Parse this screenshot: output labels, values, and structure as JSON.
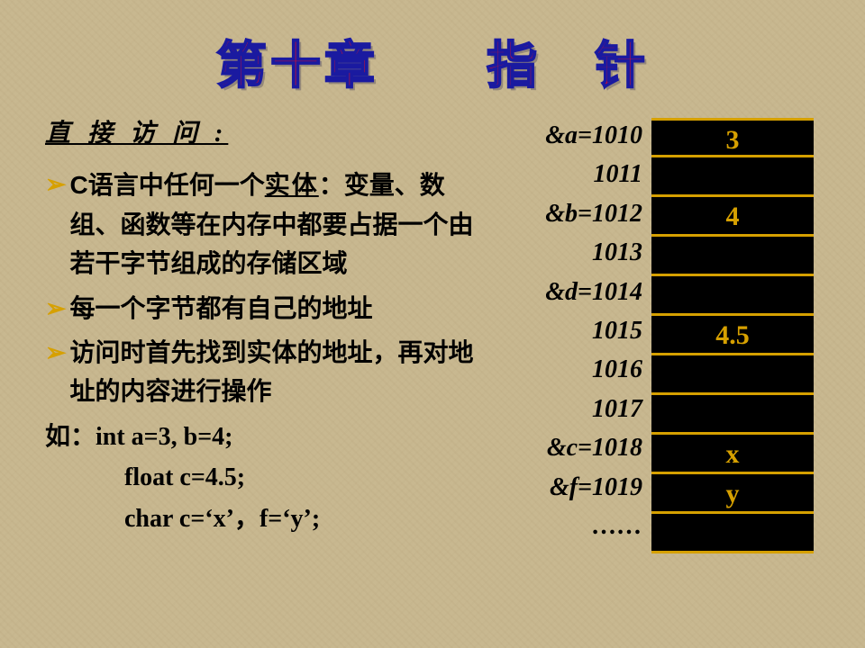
{
  "title": "第十章　　指　针",
  "subTitle": "直 接 访 问 :",
  "bullets": [
    {
      "prefix": "C",
      "text_a": "语言中任何一个",
      "entity": "实体",
      "text_b": "：变量、数组、函数等在内存中都要占据一个由若干字节组成的存储区域"
    },
    {
      "text": "每一个字节都有自己的地址"
    },
    {
      "text": "访问时首先找到实体的地址，再对地址的内容进行操作"
    }
  ],
  "code": {
    "l1": "如：int  a=3, b=4;",
    "l2": "float   c=4.5;",
    "l3": "char  c=‘x’，f=‘y’;"
  },
  "addresses": [
    "&a=1010",
    "1011",
    "&b=1012",
    "1013",
    "&d=1014",
    "1015",
    "1016",
    "1017",
    "&c=1018",
    "&f=1019",
    "……"
  ],
  "memory": [
    "3",
    "",
    "4",
    "",
    "",
    "4.5",
    "",
    "",
    "x",
    "y",
    ""
  ],
  "colors": {
    "background": "#c8b890",
    "title_fill": "#d01030",
    "title_stroke": "#1a1aa0",
    "bullet_marker": "#d6a000",
    "cell_bg": "#000000",
    "cell_text": "#d6a000",
    "body_text": "#000000"
  },
  "fonts": {
    "title_size": 56,
    "body_size": 28,
    "addr_size": 28,
    "cell_size": 30
  }
}
